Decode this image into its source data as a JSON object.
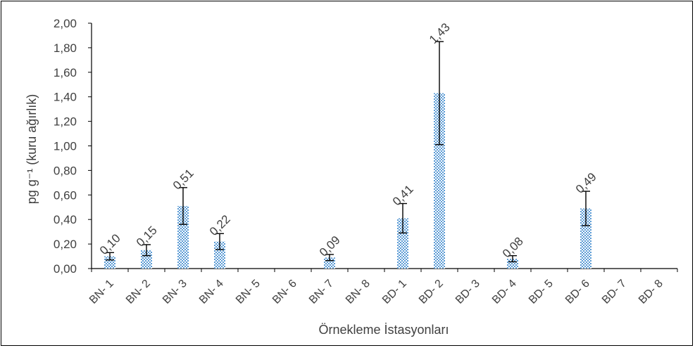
{
  "chart_data": {
    "type": "bar",
    "categories": [
      "BN- 1",
      "BN- 2",
      "BN- 3",
      "BN- 4",
      "BN- 5",
      "BN- 6",
      "BN- 7",
      "BN- 8",
      "BD- 1",
      "BD- 2",
      "BD- 3",
      "BD- 4",
      "BD- 5",
      "BD- 6",
      "BD- 7",
      "BD- 8"
    ],
    "values": [
      0.1,
      0.15,
      0.51,
      0.22,
      null,
      null,
      0.09,
      null,
      0.41,
      1.43,
      null,
      0.08,
      null,
      0.49,
      null,
      null
    ],
    "errors": [
      0.03,
      0.045,
      0.15,
      0.065,
      null,
      null,
      0.025,
      null,
      0.12,
      0.42,
      null,
      0.025,
      null,
      0.14,
      null,
      null
    ],
    "data_labels": [
      "0,10",
      "0,15",
      "0,51",
      "0,22",
      "",
      "",
      "0,09",
      "",
      "0,41",
      "1,43",
      "",
      "0,08",
      "",
      "0,49",
      "",
      ""
    ],
    "y_ticks": [
      "0,00",
      "0,20",
      "0,40",
      "0,60",
      "0,80",
      "1,00",
      "1,20",
      "1,40",
      "1,60",
      "1,80",
      "2,00"
    ],
    "ylim": [
      0,
      2
    ],
    "xlabel": "Örnekleme İstasyonları",
    "ylabel": "pg g⁻¹ (kuru ağırlık)",
    "grid": false,
    "bar_color": "#5b9bd5",
    "bar_pattern": "checkered"
  }
}
